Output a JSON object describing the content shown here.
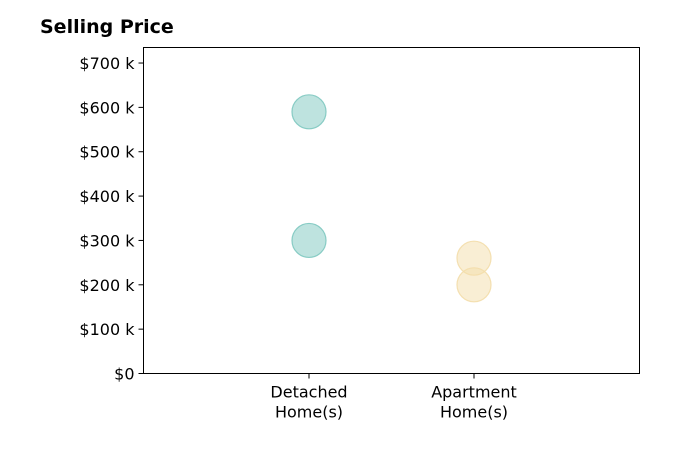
{
  "chart_data": {
    "type": "scatter",
    "title": "Selling Price",
    "xlabel": "",
    "ylabel": "",
    "categories": [
      "Detached Home(s)",
      "Apartment Home(s)"
    ],
    "category_lines": [
      [
        "Detached",
        "Home(s)"
      ],
      [
        "Apartment",
        "Home(s)"
      ]
    ],
    "y_ticks": [
      "$0",
      "$100 k",
      "$200 k",
      "$300 k",
      "$400 k",
      "$500 k",
      "$600 k",
      "$700 k"
    ],
    "y_tick_values": [
      0,
      100000,
      200000,
      300000,
      400000,
      500000,
      600000,
      700000
    ],
    "ylim": [
      0,
      735000
    ],
    "grid": false,
    "series": [
      {
        "category": "Detached Home(s)",
        "color": "#7ec8c0",
        "values": [
          590000,
          300000
        ]
      },
      {
        "category": "Apartment Home(s)",
        "color": "#f3ddaa",
        "values": [
          260000,
          200000
        ]
      }
    ]
  }
}
